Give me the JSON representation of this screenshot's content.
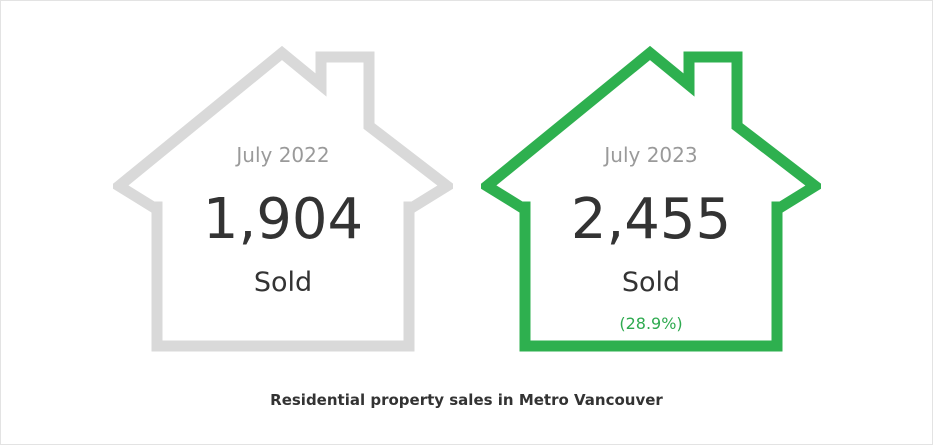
{
  "caption": "Residential property sales in Metro Vancouver",
  "colors": {
    "previous": "#d9d9d9",
    "current": "#2eb04f",
    "change": "#2eaa4f",
    "text": "#333333",
    "muted": "#9a9a9a"
  },
  "chart_data": {
    "type": "table",
    "title": "Residential property sales in Metro Vancouver",
    "unit": "Sold",
    "items": [
      {
        "period": "July 2022",
        "value": "1,904",
        "unit_label": "Sold",
        "color": "#d9d9d9"
      },
      {
        "period": "July 2023",
        "value": "2,455",
        "unit_label": "Sold",
        "change": "(28.9%)",
        "color": "#2eb04f"
      }
    ]
  }
}
